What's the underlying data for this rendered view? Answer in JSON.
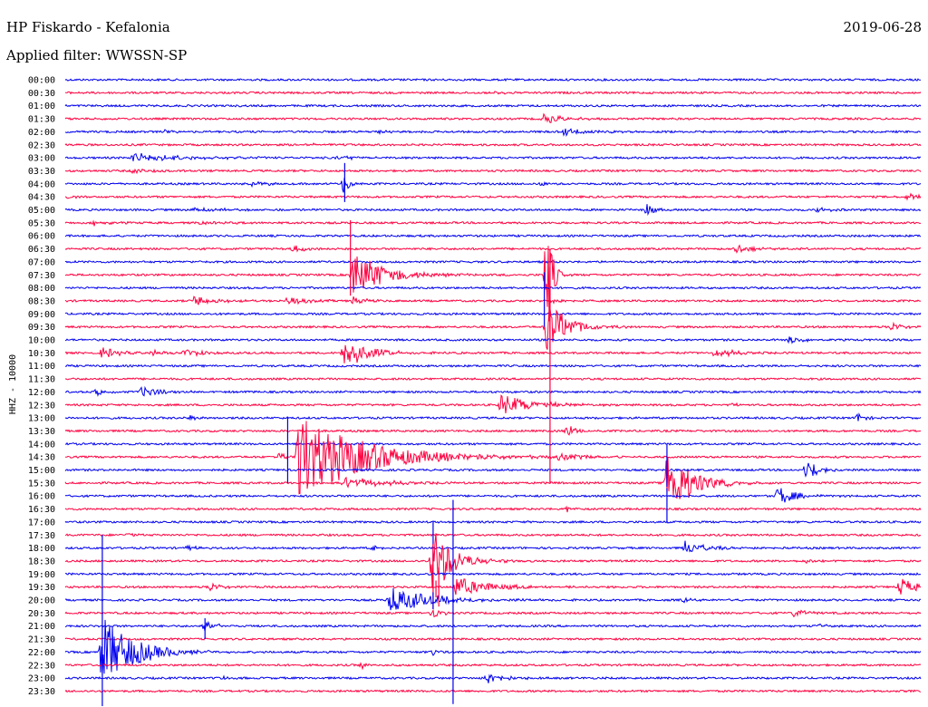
{
  "header": {
    "station": "HP Fiskardo - Kefalonia",
    "date": "2019-06-28",
    "filter_label": "Applied filter: WWSSN-SP"
  },
  "colors": {
    "trace_a": "#0000ee",
    "trace_b": "#ff0040"
  },
  "chart_data": {
    "type": "line",
    "title": "HP Fiskardo - Kefalonia",
    "subtitle": "Applied filter: WWSSN-SP",
    "date": "2019-06-28",
    "ylabel": "HHZ - 10000",
    "xlabel": "",
    "grid": false,
    "legend": "none",
    "row_minutes": 30,
    "row_labels": [
      "00:00",
      "00:30",
      "01:00",
      "01:30",
      "02:00",
      "02:30",
      "03:00",
      "03:30",
      "04:00",
      "04:30",
      "05:00",
      "05:30",
      "06:00",
      "06:30",
      "07:00",
      "07:30",
      "08:00",
      "08:30",
      "09:00",
      "09:30",
      "10:00",
      "10:30",
      "11:00",
      "11:30",
      "12:00",
      "12:30",
      "13:00",
      "13:30",
      "14:00",
      "14:30",
      "15:00",
      "15:30",
      "16:00",
      "16:30",
      "17:00",
      "17:30",
      "18:00",
      "18:30",
      "19:00",
      "19:30",
      "20:00",
      "20:30",
      "21:00",
      "21:30",
      "22:00",
      "22:30",
      "23:00",
      "23:30"
    ],
    "row_colors": [
      "trace_a",
      "trace_b"
    ],
    "events": [
      {
        "row": 1,
        "minute": 15.0,
        "amp": 0.15,
        "dur": 1.0
      },
      {
        "row": 3,
        "minute": 16.8,
        "amp": 0.7,
        "dur": 1.2
      },
      {
        "row": 4,
        "minute": 17.5,
        "amp": 0.5,
        "dur": 1.5
      },
      {
        "row": 4,
        "minute": 3.5,
        "amp": 0.3,
        "dur": 0.6
      },
      {
        "row": 4,
        "minute": 11.0,
        "amp": 0.3,
        "dur": 0.5
      },
      {
        "row": 5,
        "minute": 8.7,
        "amp": 0.2,
        "dur": 0.5
      },
      {
        "row": 6,
        "minute": 2.4,
        "amp": 0.6,
        "dur": 3.0
      },
      {
        "row": 6,
        "minute": 9.5,
        "amp": 0.3,
        "dur": 1.5
      },
      {
        "row": 7,
        "minute": 2.4,
        "amp": 0.3,
        "dur": 1.2
      },
      {
        "row": 8,
        "minute": 6.6,
        "amp": 0.4,
        "dur": 0.8
      },
      {
        "row": 8,
        "minute": 9.8,
        "amp": 2.0,
        "dur": 0.3
      },
      {
        "row": 8,
        "minute": 16.7,
        "amp": 0.4,
        "dur": 0.4
      },
      {
        "row": 9,
        "minute": 29.5,
        "amp": 0.4,
        "dur": 1.5
      },
      {
        "row": 9,
        "minute": 0.1,
        "amp": 0.3,
        "dur": 0.4
      },
      {
        "row": 10,
        "minute": 4.5,
        "amp": 0.4,
        "dur": 1.5
      },
      {
        "row": 10,
        "minute": 26.3,
        "amp": 0.3,
        "dur": 1.0
      },
      {
        "row": 10,
        "minute": 20.4,
        "amp": 1.0,
        "dur": 0.4
      },
      {
        "row": 11,
        "minute": 1.0,
        "amp": 0.5,
        "dur": 0.8
      },
      {
        "row": 11,
        "minute": 4.5,
        "amp": 0.2,
        "dur": 1.5
      },
      {
        "row": 13,
        "minute": 8.0,
        "amp": 0.5,
        "dur": 0.8
      },
      {
        "row": 13,
        "minute": 23.5,
        "amp": 0.6,
        "dur": 1.2
      },
      {
        "row": 15,
        "minute": 10.1,
        "amp": 3.5,
        "dur": 1.8
      },
      {
        "row": 15,
        "minute": 16.9,
        "amp": 10.0,
        "dur": 0.3
      },
      {
        "row": 17,
        "minute": 4.5,
        "amp": 0.8,
        "dur": 1.3
      },
      {
        "row": 17,
        "minute": 7.8,
        "amp": 0.7,
        "dur": 1.0
      },
      {
        "row": 17,
        "minute": 10.1,
        "amp": 0.6,
        "dur": 0.7
      },
      {
        "row": 17,
        "minute": 17.0,
        "amp": 0.3,
        "dur": 0.6
      },
      {
        "row": 19,
        "minute": 16.9,
        "amp": 4.0,
        "dur": 1.2
      },
      {
        "row": 19,
        "minute": 29.0,
        "amp": 0.6,
        "dur": 0.7
      },
      {
        "row": 20,
        "minute": 25.4,
        "amp": 0.6,
        "dur": 0.8
      },
      {
        "row": 21,
        "minute": 1.3,
        "amp": 0.8,
        "dur": 0.9
      },
      {
        "row": 21,
        "minute": 3.1,
        "amp": 0.6,
        "dur": 0.5
      },
      {
        "row": 21,
        "minute": 4.2,
        "amp": 0.6,
        "dur": 1.0
      },
      {
        "row": 21,
        "minute": 9.8,
        "amp": 2.5,
        "dur": 1.3
      },
      {
        "row": 21,
        "minute": 22.8,
        "amp": 0.6,
        "dur": 1.4
      },
      {
        "row": 24,
        "minute": 1.1,
        "amp": 0.5,
        "dur": 0.5
      },
      {
        "row": 24,
        "minute": 2.7,
        "amp": 0.7,
        "dur": 1.3
      },
      {
        "row": 24,
        "minute": 5.2,
        "amp": 0.3,
        "dur": 0.4
      },
      {
        "row": 25,
        "minute": 15.3,
        "amp": 1.5,
        "dur": 1.8
      },
      {
        "row": 25,
        "minute": 23.5,
        "amp": 0.4,
        "dur": 0.3
      },
      {
        "row": 26,
        "minute": 4.3,
        "amp": 0.5,
        "dur": 0.6
      },
      {
        "row": 26,
        "minute": 27.8,
        "amp": 0.6,
        "dur": 0.5
      },
      {
        "row": 27,
        "minute": 17.6,
        "amp": 1.0,
        "dur": 0.5
      },
      {
        "row": 29,
        "minute": 7.5,
        "amp": 0.6,
        "dur": 0.4
      },
      {
        "row": 29,
        "minute": 8.2,
        "amp": 6.0,
        "dur": 4.0
      },
      {
        "row": 29,
        "minute": 17.3,
        "amp": 0.8,
        "dur": 1.2
      },
      {
        "row": 30,
        "minute": 26.0,
        "amp": 1.5,
        "dur": 0.8
      },
      {
        "row": 31,
        "minute": 9.8,
        "amp": 0.8,
        "dur": 2.5
      },
      {
        "row": 31,
        "minute": 21.1,
        "amp": 5.0,
        "dur": 1.5
      },
      {
        "row": 32,
        "minute": 25.0,
        "amp": 1.5,
        "dur": 1.0
      },
      {
        "row": 33,
        "minute": 17.6,
        "amp": 0.4,
        "dur": 0.3
      },
      {
        "row": 35,
        "minute": 2.2,
        "amp": 0.4,
        "dur": 0.3
      },
      {
        "row": 36,
        "minute": 4.3,
        "amp": 0.4,
        "dur": 0.6
      },
      {
        "row": 36,
        "minute": 10.8,
        "amp": 0.5,
        "dur": 0.5
      },
      {
        "row": 36,
        "minute": 21.7,
        "amp": 1.0,
        "dur": 1.2
      },
      {
        "row": 37,
        "minute": 12.9,
        "amp": 5.0,
        "dur": 1.2
      },
      {
        "row": 37,
        "minute": 26.0,
        "amp": 0.4,
        "dur": 0.4
      },
      {
        "row": 39,
        "minute": 5.1,
        "amp": 0.6,
        "dur": 0.7
      },
      {
        "row": 39,
        "minute": 13.7,
        "amp": 1.5,
        "dur": 2.0
      },
      {
        "row": 39,
        "minute": 29.3,
        "amp": 1.2,
        "dur": 1.0
      },
      {
        "row": 40,
        "minute": 11.4,
        "amp": 1.8,
        "dur": 2.5
      },
      {
        "row": 40,
        "minute": 21.7,
        "amp": 0.3,
        "dur": 0.6
      },
      {
        "row": 41,
        "minute": 12.9,
        "amp": 0.8,
        "dur": 0.5
      },
      {
        "row": 41,
        "minute": 25.6,
        "amp": 0.7,
        "dur": 0.6
      },
      {
        "row": 42,
        "minute": 4.9,
        "amp": 1.0,
        "dur": 0.6
      },
      {
        "row": 42,
        "minute": 26.4,
        "amp": 0.4,
        "dur": 0.4
      },
      {
        "row": 44,
        "minute": 1.3,
        "amp": 5.0,
        "dur": 2.0
      },
      {
        "row": 44,
        "minute": 12.9,
        "amp": 0.5,
        "dur": 0.3
      },
      {
        "row": 45,
        "minute": 10.4,
        "amp": 0.5,
        "dur": 0.4
      },
      {
        "row": 46,
        "minute": 5.4,
        "amp": 0.4,
        "dur": 0.4
      },
      {
        "row": 46,
        "minute": 14.8,
        "amp": 0.9,
        "dur": 1.0
      }
    ],
    "spikes": [
      {
        "row": 8,
        "minute": 9.8,
        "up": 1.6,
        "down": 1.4
      },
      {
        "row": 15,
        "minute": 10.0,
        "up": 4.2,
        "down": 1.6
      },
      {
        "row": 16,
        "minute": 16.8,
        "up": 1.2,
        "down": 3.0
      },
      {
        "row": 19,
        "minute": 17.0,
        "up": 6.0,
        "down": 2.0
      },
      {
        "row": 15,
        "minute": 17.0,
        "up": 0.6,
        "down": 16.0
      },
      {
        "row": 28,
        "minute": 7.8,
        "up": 2.1,
        "down": 3.0
      },
      {
        "row": 30,
        "minute": 21.1,
        "up": 2.0,
        "down": 1.3
      },
      {
        "row": 32,
        "minute": 21.1,
        "up": 0.6,
        "down": 2.0
      },
      {
        "row": 36,
        "minute": 12.9,
        "up": 2.0,
        "down": 1.0
      },
      {
        "row": 37,
        "minute": 12.9,
        "up": 1.3,
        "down": 3.7
      },
      {
        "row": 39,
        "minute": 13.1,
        "up": 1.5,
        "down": 1.5
      },
      {
        "row": 39,
        "minute": 13.0,
        "up": 0.5,
        "down": 0.8
      },
      {
        "row": 40,
        "minute": 12.9,
        "up": 0.6,
        "down": 0.7
      },
      {
        "row": 44,
        "minute": 1.3,
        "up": 9.0,
        "down": 4.2
      },
      {
        "row": 36,
        "minute": 13.6,
        "up": 3.7,
        "down": 1.0
      },
      {
        "row": 38,
        "minute": 13.6,
        "up": 1.0,
        "down": 10.0
      },
      {
        "row": 42,
        "minute": 4.9,
        "up": 0.6,
        "down": 1.0
      }
    ]
  }
}
